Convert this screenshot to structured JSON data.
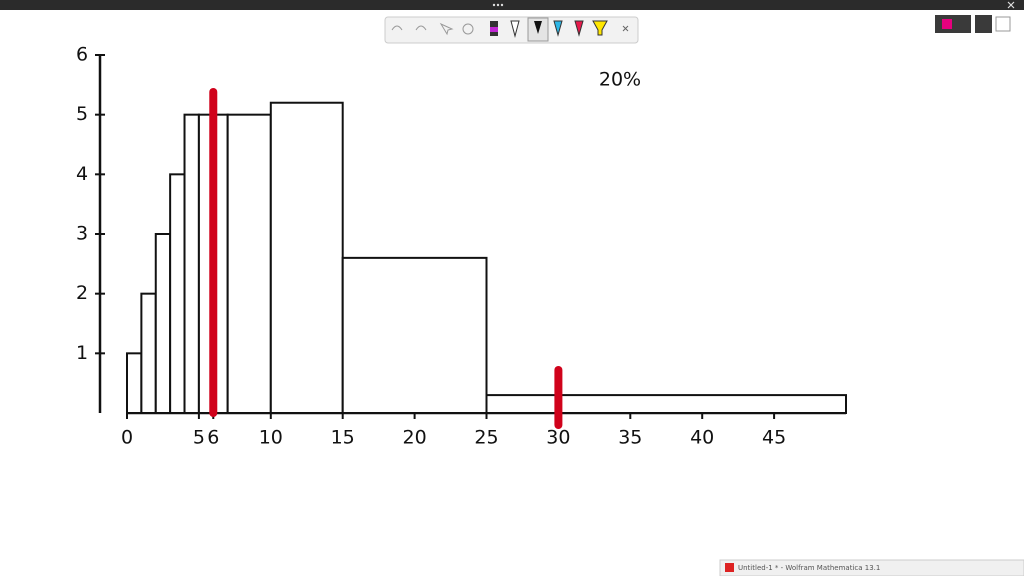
{
  "chart_data": {
    "type": "histogram",
    "bins": [
      0,
      1,
      2,
      3,
      4,
      5,
      7,
      10,
      15,
      25,
      50
    ],
    "counts": [
      1,
      2,
      3,
      4,
      5,
      5,
      5,
      5.2,
      2.6,
      0.3
    ],
    "xlim": [
      0,
      50
    ],
    "ylim": [
      0,
      6
    ],
    "xticks": [
      0,
      5,
      6,
      10,
      15,
      20,
      25,
      30,
      35,
      40,
      45
    ],
    "yticks": [
      1,
      2,
      3,
      4,
      5,
      6
    ],
    "markers": [
      6,
      30
    ],
    "marker_color": "#d0021b",
    "color": "#ffffff",
    "annotation": "20%"
  },
  "taskbar": {
    "title": "Untitled-1 * - Wolfram Mathematica 13.1"
  }
}
